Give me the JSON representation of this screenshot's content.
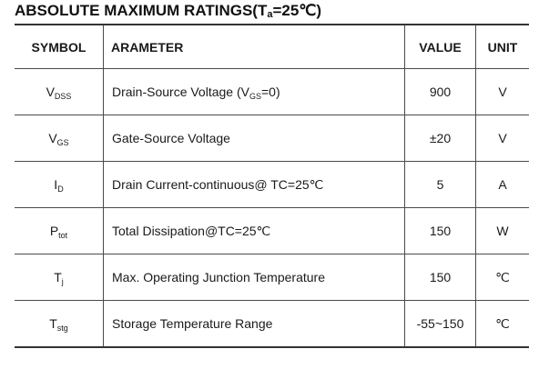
{
  "heading": {
    "text_before": "ABSOLUTE MAXIMUM RATINGS(T",
    "subscript": "a",
    "text_after": "=25℃)"
  },
  "table": {
    "headers": {
      "symbol": "SYMBOL",
      "parameter": "ARAMETER",
      "value": "VALUE",
      "unit": "UNIT"
    },
    "rows": [
      {
        "symbol": {
          "main": "V",
          "sub": "DSS"
        },
        "parameter": {
          "before": "Drain-Source Voltage (V",
          "sub": "GS",
          "after": "=0)"
        },
        "value": "900",
        "unit": "V"
      },
      {
        "symbol": {
          "main": "V",
          "sub": "GS"
        },
        "parameter": {
          "before": "Gate-Source Voltage",
          "sub": "",
          "after": ""
        },
        "value": "±20",
        "unit": "V"
      },
      {
        "symbol": {
          "main": "I",
          "sub": "D"
        },
        "parameter": {
          "before": "Drain Current-continuous@ TC=25℃",
          "sub": "",
          "after": ""
        },
        "value": "5",
        "unit": "A"
      },
      {
        "symbol": {
          "main": "P",
          "sub": "tot"
        },
        "parameter": {
          "before": "Total Dissipation@TC=25℃",
          "sub": "",
          "after": ""
        },
        "value": "150",
        "unit": "W"
      },
      {
        "symbol": {
          "main": "T",
          "sub": "j"
        },
        "parameter": {
          "before": "Max. Operating Junction Temperature",
          "sub": "",
          "after": ""
        },
        "value": "150",
        "unit": "℃"
      },
      {
        "symbol": {
          "main": "T",
          "sub": "stg"
        },
        "parameter": {
          "before": "Storage Temperature Range",
          "sub": "",
          "after": ""
        },
        "value": "-55~150",
        "unit": "℃"
      }
    ]
  }
}
